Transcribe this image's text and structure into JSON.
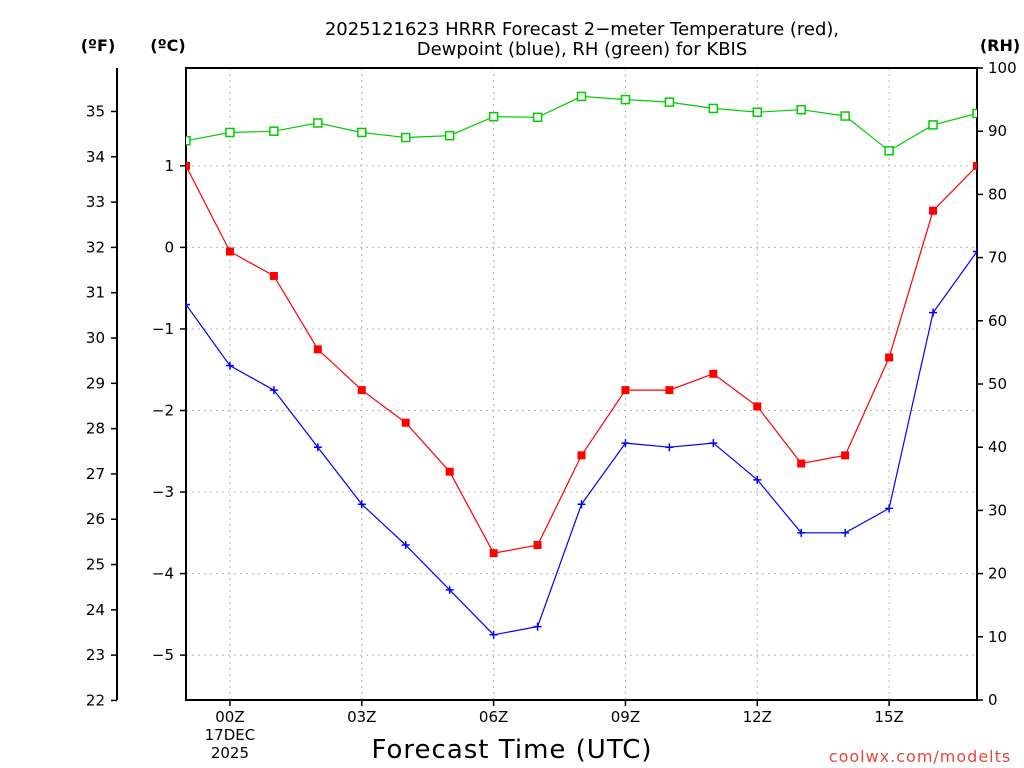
{
  "chart_data": {
    "type": "line",
    "title_lines": [
      "2025121623 HRRR Forecast 2−meter Temperature (red),",
      "Dewpoint (blue), RH (green) for KBIS"
    ],
    "xlabel": "Forecast Time (UTC)",
    "credit": "coolwx.com/modelts",
    "units": {
      "fahrenheit": "(ºF)",
      "celsius": "(ºC)",
      "rh": "(RH)"
    },
    "x": [
      -1,
      0,
      1,
      2,
      3,
      4,
      5,
      6,
      7,
      8,
      9,
      10,
      11,
      12,
      13,
      14,
      15,
      16,
      17
    ],
    "xlim": [
      -1,
      17
    ],
    "xticks": [
      {
        "x": 0,
        "lines": [
          "00Z",
          "17DEC",
          "2025"
        ]
      },
      {
        "x": 3,
        "lines": [
          "03Z"
        ]
      },
      {
        "x": 6,
        "lines": [
          "06Z"
        ]
      },
      {
        "x": 9,
        "lines": [
          "09Z"
        ]
      },
      {
        "x": 12,
        "lines": [
          "12Z"
        ]
      },
      {
        "x": 15,
        "lines": [
          "15Z"
        ]
      }
    ],
    "ylim_c": [
      -5.55,
      2.2
    ],
    "yticks_c": [
      1,
      0,
      -1,
      -2,
      -3,
      -4,
      -5
    ],
    "yticks_f": [
      35,
      34,
      33,
      32,
      31,
      30,
      29,
      28,
      27,
      26,
      25,
      24,
      23,
      22
    ],
    "ylim_rh": [
      0,
      100
    ],
    "yticks_rh": [
      0,
      10,
      20,
      30,
      40,
      50,
      60,
      70,
      80,
      90,
      100
    ],
    "series": [
      {
        "name": "Temperature",
        "color": "#ff0000",
        "marker": "filled-square",
        "axis": "celsius",
        "values": [
          1.0,
          -0.05,
          -0.35,
          -1.25,
          -1.75,
          -2.15,
          -2.75,
          -3.75,
          -3.65,
          -2.55,
          -1.75,
          -1.75,
          -1.55,
          -1.95,
          -2.65,
          -2.55,
          -1.35,
          0.45,
          1.0
        ]
      },
      {
        "name": "Dewpoint",
        "color": "#0000ff",
        "marker": "plus",
        "axis": "celsius",
        "values": [
          -0.7,
          -1.45,
          -1.75,
          -2.45,
          -3.15,
          -3.65,
          -4.2,
          -4.75,
          -4.65,
          -3.15,
          -2.4,
          -2.45,
          -2.4,
          -2.85,
          -3.5,
          -3.5,
          -3.2,
          -0.8,
          -0.05
        ]
      },
      {
        "name": "RH",
        "color": "#00cc00",
        "marker": "open-square",
        "axis": "rh",
        "values": [
          88.5,
          89.8,
          90.0,
          91.3,
          89.8,
          89.0,
          89.3,
          92.3,
          92.2,
          95.5,
          95.0,
          94.6,
          93.6,
          93.0,
          93.4,
          92.4,
          86.9,
          91.0,
          92.8
        ]
      }
    ]
  }
}
